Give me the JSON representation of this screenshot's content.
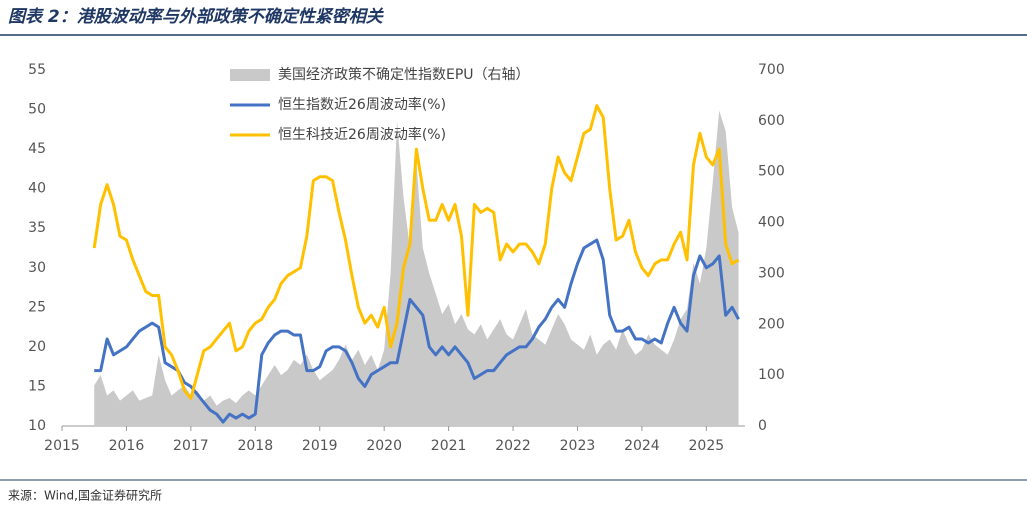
{
  "chart_data": {
    "type": "line",
    "title": "图表 2：港股波动率与外部政策不确定性紧密相关",
    "source": "来源：Wind,国金证券研究所",
    "x": [
      2015.5,
      2015.6,
      2015.7,
      2015.8,
      2015.9,
      2016.0,
      2016.1,
      2016.2,
      2016.3,
      2016.4,
      2016.5,
      2016.6,
      2016.7,
      2016.8,
      2016.9,
      2017.0,
      2017.1,
      2017.2,
      2017.3,
      2017.4,
      2017.5,
      2017.6,
      2017.7,
      2017.8,
      2017.9,
      2018.0,
      2018.1,
      2018.2,
      2018.3,
      2018.4,
      2018.5,
      2018.6,
      2018.7,
      2018.8,
      2018.9,
      2019.0,
      2019.1,
      2019.2,
      2019.3,
      2019.4,
      2019.5,
      2019.6,
      2019.7,
      2019.8,
      2019.9,
      2020.0,
      2020.1,
      2020.2,
      2020.3,
      2020.4,
      2020.5,
      2020.6,
      2020.7,
      2020.8,
      2020.9,
      2021.0,
      2021.1,
      2021.2,
      2021.3,
      2021.4,
      2021.5,
      2021.6,
      2021.7,
      2021.8,
      2021.9,
      2022.0,
      2022.1,
      2022.2,
      2022.3,
      2022.4,
      2022.5,
      2022.6,
      2022.7,
      2022.8,
      2022.9,
      2023.0,
      2023.1,
      2023.2,
      2023.3,
      2023.4,
      2023.5,
      2023.6,
      2023.7,
      2023.8,
      2023.9,
      2024.0,
      2024.1,
      2024.2,
      2024.3,
      2024.4,
      2024.5,
      2024.6,
      2024.7,
      2024.8,
      2024.9,
      2025.0,
      2025.1,
      2025.2,
      2025.3,
      2025.4,
      2025.5
    ],
    "series": [
      {
        "name": "美国经济政策不确定性指数EPU（右轴）",
        "type": "area",
        "axis": "y2",
        "color": "#c9c9c9",
        "values": [
          80,
          100,
          60,
          70,
          50,
          60,
          70,
          50,
          55,
          60,
          140,
          90,
          60,
          70,
          80,
          60,
          70,
          50,
          60,
          40,
          50,
          55,
          45,
          60,
          70,
          60,
          80,
          100,
          120,
          100,
          110,
          130,
          120,
          140,
          110,
          90,
          100,
          110,
          130,
          160,
          130,
          150,
          120,
          140,
          110,
          150,
          300,
          600,
          450,
          350,
          520,
          350,
          300,
          260,
          220,
          240,
          200,
          220,
          190,
          180,
          200,
          170,
          190,
          210,
          180,
          170,
          200,
          230,
          180,
          170,
          160,
          190,
          220,
          200,
          170,
          160,
          150,
          180,
          140,
          160,
          170,
          150,
          190,
          160,
          140,
          150,
          180,
          160,
          150,
          140,
          170,
          210,
          230,
          320,
          280,
          350,
          480,
          620,
          580,
          430,
          380
        ]
      },
      {
        "name": "恒生指数近26周波动率(%)",
        "type": "line",
        "color": "#4472c4",
        "values": [
          17,
          17,
          21,
          19,
          19.5,
          20,
          21,
          22,
          22.5,
          23,
          22.5,
          18,
          17.5,
          17,
          15.5,
          15,
          14,
          13,
          12,
          11.5,
          10.5,
          11.5,
          11,
          11.5,
          11,
          11.5,
          19,
          20.5,
          21.5,
          22,
          22,
          21.5,
          21.5,
          17,
          17,
          17.5,
          19.5,
          20,
          20,
          19.5,
          18,
          16,
          15,
          16.5,
          17,
          17.5,
          18,
          18,
          22,
          26,
          25,
          24,
          20,
          19,
          20,
          19,
          20,
          19,
          18,
          16,
          16.5,
          17,
          17,
          18,
          19,
          19.5,
          20,
          20,
          21,
          22.5,
          23.5,
          25,
          26,
          25,
          28,
          30.5,
          32.5,
          33,
          33.5,
          31,
          24,
          22,
          22,
          22.5,
          21,
          21,
          20.5,
          21,
          20.5,
          23,
          25,
          23,
          22,
          29,
          31.5,
          30,
          30.5,
          31.5,
          24,
          25,
          23.5
        ]
      },
      {
        "name": "恒生科技近26周波动率(%)",
        "type": "line",
        "color": "#ffc000",
        "values": [
          32.5,
          38,
          40.5,
          38,
          34,
          33.5,
          31,
          29,
          27,
          26.5,
          26.5,
          20,
          19,
          17,
          14.5,
          13.5,
          16.5,
          19.5,
          20,
          21,
          22,
          23,
          19.5,
          20,
          22,
          23,
          23.5,
          25,
          26,
          28,
          29,
          29.5,
          30,
          34,
          41,
          41.5,
          41.5,
          41,
          37,
          33.5,
          29,
          25,
          23,
          24,
          22.5,
          25,
          20,
          23,
          30,
          33,
          45,
          40,
          36,
          36,
          38,
          36,
          38,
          34,
          24,
          38,
          37,
          37.5,
          37,
          31,
          33,
          32,
          33,
          33,
          32,
          30.5,
          33,
          40,
          44,
          42,
          41,
          44,
          47,
          47.5,
          50.5,
          49,
          40,
          33.5,
          34,
          36,
          32,
          30,
          29,
          30.5,
          31,
          31,
          33,
          34.5,
          31,
          43,
          47,
          44,
          43,
          45,
          33,
          30.5,
          31
        ]
      }
    ],
    "xlim": [
      2015,
      2025.6
    ],
    "xticks": [
      2015,
      2016,
      2017,
      2018,
      2019,
      2020,
      2021,
      2022,
      2023,
      2024,
      2025
    ],
    "ylim": [
      10,
      55
    ],
    "yticks": [
      10,
      15,
      20,
      25,
      30,
      35,
      40,
      45,
      50,
      55
    ],
    "y2lim": [
      0,
      700
    ],
    "y2ticks": [
      0,
      100,
      200,
      300,
      400,
      500,
      600,
      700
    ],
    "grid": false
  }
}
